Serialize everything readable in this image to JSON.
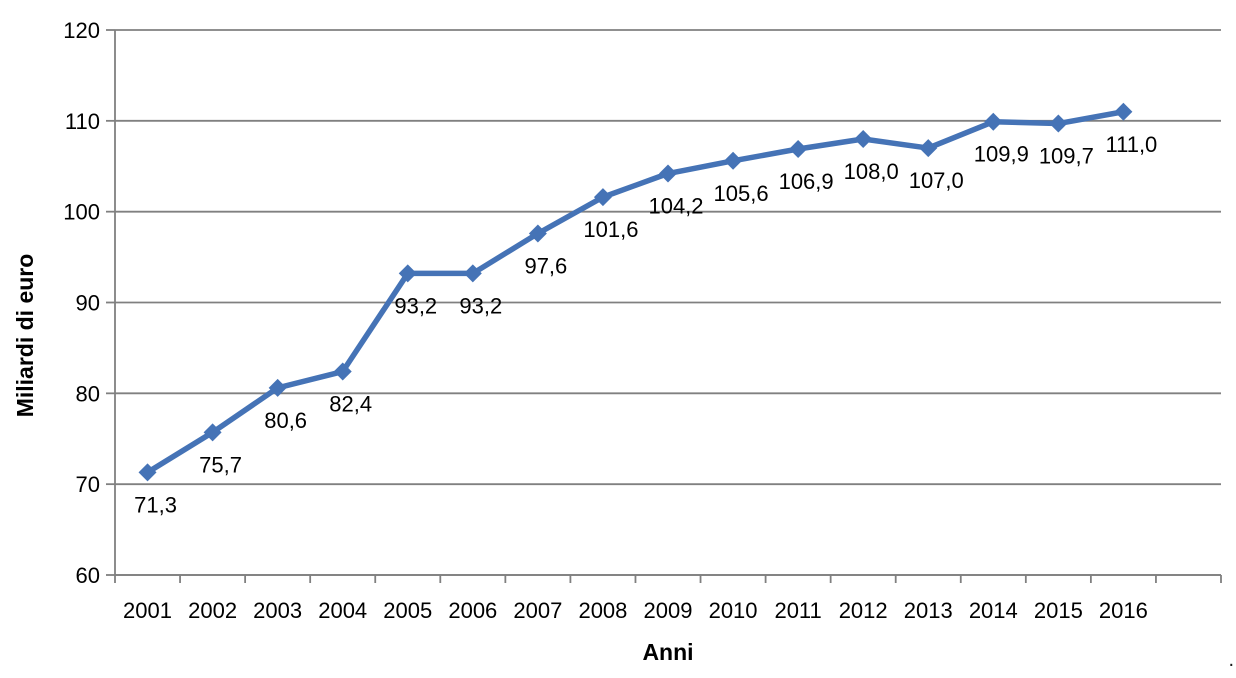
{
  "page": {
    "corner_mark": "."
  },
  "chart_data": {
    "type": "line",
    "title": "",
    "xlabel": "Anni",
    "ylabel": "Miliardi di euro",
    "categories": [
      "2001",
      "2002",
      "2003",
      "2004",
      "2005",
      "2006",
      "2007",
      "2008",
      "2009",
      "2010",
      "2011",
      "2012",
      "2013",
      "2014",
      "2015",
      "2016"
    ],
    "series": [
      {
        "name": "Miliardi di euro",
        "values": [
          71.3,
          75.7,
          80.6,
          82.4,
          93.2,
          93.2,
          97.6,
          101.6,
          104.2,
          105.6,
          106.9,
          108.0,
          107.0,
          109.9,
          109.7,
          111.0
        ],
        "data_labels": [
          "71,3",
          "75,7",
          "80,6",
          "82,4",
          "93,2",
          "93,2",
          "97,6",
          "101,6",
          "104,2",
          "105,6",
          "106,9",
          "108,0",
          "107,0",
          "109,9",
          "109,7",
          "111,0"
        ]
      }
    ],
    "ylim": [
      60,
      120
    ],
    "ytick_step": 10,
    "ytick_labels": [
      "120",
      "110",
      "100",
      "90",
      "80",
      "70",
      "60"
    ],
    "grid": "horizontal",
    "legend": "none",
    "marker": "diamond",
    "colors": {
      "line": "#4573b6",
      "marker": "#4573b6",
      "grid": "#808080",
      "axis": "#808080",
      "text": "#000000",
      "background": "#ffffff"
    }
  }
}
